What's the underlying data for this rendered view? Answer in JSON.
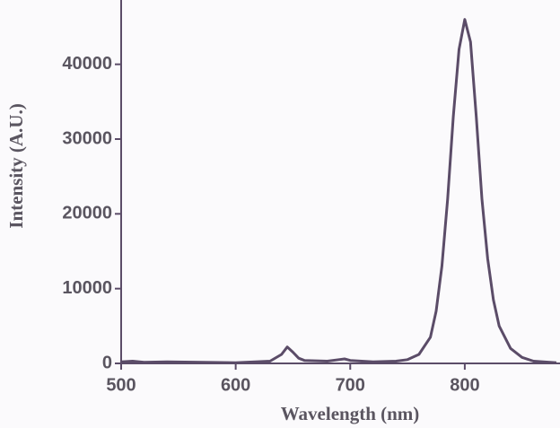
{
  "chart_data": {
    "type": "line",
    "xlabel": "Wavelength (nm)",
    "ylabel": "Intensity (A.U.)",
    "x": [
      500,
      510,
      520,
      540,
      600,
      630,
      640,
      645,
      650,
      655,
      660,
      680,
      690,
      695,
      700,
      720,
      740,
      750,
      760,
      770,
      775,
      780,
      785,
      790,
      795,
      800,
      805,
      810,
      815,
      820,
      825,
      830,
      840,
      850,
      860,
      880
    ],
    "series": [
      {
        "color": "#5b4c68",
        "values": [
          200,
          300,
          150,
          200,
          100,
          300,
          1200,
          2200,
          1500,
          700,
          400,
          300,
          500,
          600,
          400,
          200,
          300,
          500,
          1200,
          3500,
          7000,
          13000,
          22000,
          33000,
          42000,
          46000,
          43000,
          33000,
          22000,
          14000,
          8500,
          5000,
          2000,
          800,
          300,
          100
        ]
      }
    ],
    "xlim": [
      500,
      880
    ],
    "xticks": [
      500,
      600,
      700,
      800
    ],
    "ylim": [
      0,
      48600
    ],
    "yticks": [
      0,
      10000,
      20000,
      30000,
      40000
    ]
  }
}
